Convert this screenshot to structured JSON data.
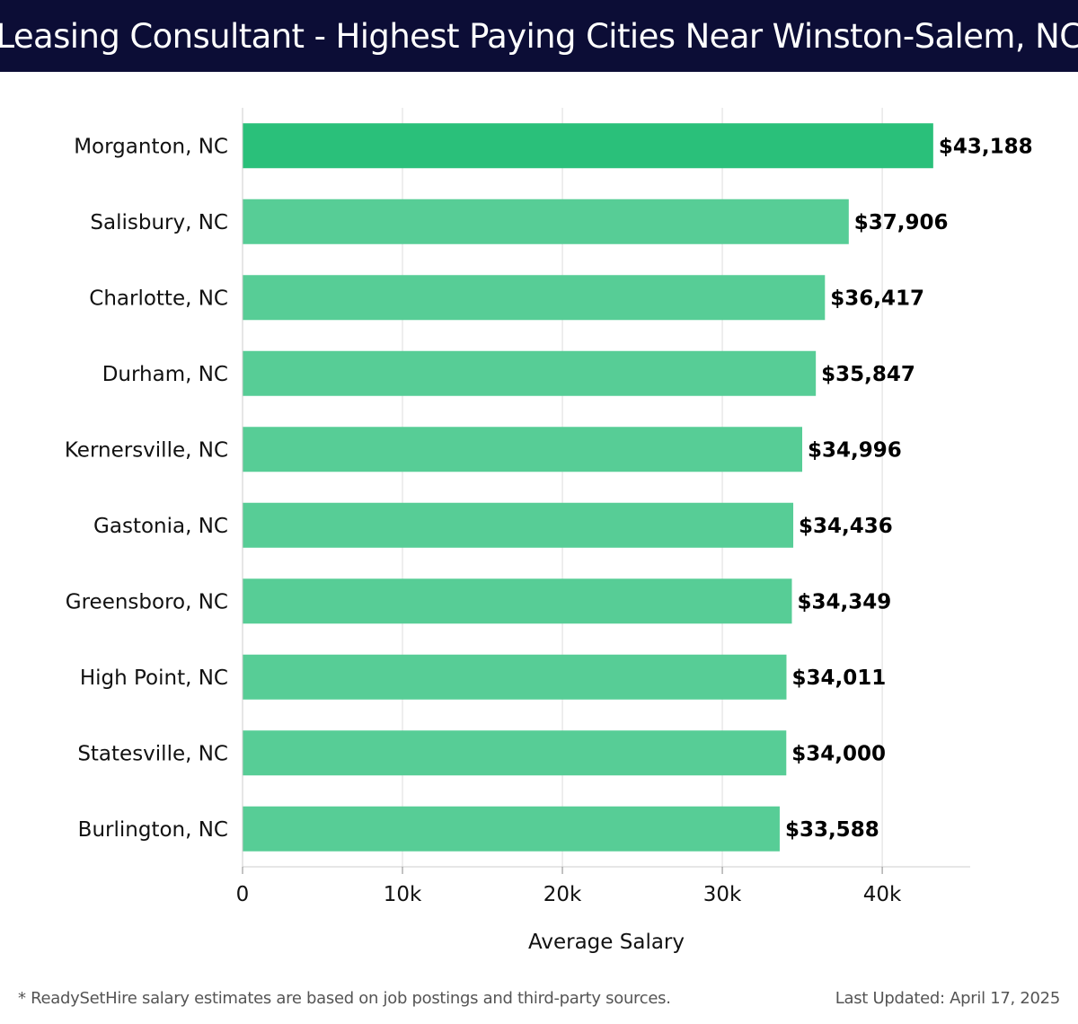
{
  "header": {
    "title": "Leasing Consultant - Highest Paying Cities Near Winston-Salem, NC"
  },
  "chart_data": {
    "type": "bar",
    "orientation": "horizontal",
    "title": "Leasing Consultant - Highest Paying Cities Near Winston-Salem, NC",
    "xlabel": "Average Salary",
    "ylabel": "",
    "xlim": [
      0,
      45500
    ],
    "xticks": [
      0,
      10000,
      20000,
      30000,
      40000
    ],
    "xtick_labels": [
      "0",
      "10k",
      "20k",
      "30k",
      "40k"
    ],
    "grid": true,
    "categories": [
      "Morganton, NC",
      "Salisbury, NC",
      "Charlotte, NC",
      "Durham, NC",
      "Kernersville, NC",
      "Gastonia, NC",
      "Greensboro, NC",
      "High Point, NC",
      "Statesville, NC",
      "Burlington, NC"
    ],
    "values": [
      43188,
      37906,
      36417,
      35847,
      34996,
      34436,
      34349,
      34011,
      34000,
      33588
    ],
    "value_labels": [
      "$43,188",
      "$37,906",
      "$36,417",
      "$35,847",
      "$34,996",
      "$34,436",
      "$34,349",
      "$34,011",
      "$34,000",
      "$33,588"
    ],
    "colors": {
      "highlight_bar": "#2ac07a",
      "bar": "#57cd96",
      "grid": "#dddddd",
      "axis": "#cccccc"
    }
  },
  "footer": {
    "note": "* ReadySetHire salary estimates are based on job postings and third-party sources.",
    "updated": "Last Updated: April 17, 2025"
  }
}
